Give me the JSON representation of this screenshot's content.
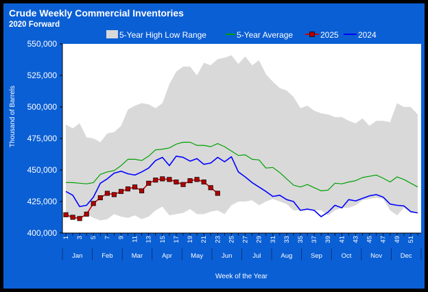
{
  "chart_data": {
    "type": "line",
    "title": "Crude Weekly Commercial Inventories",
    "subtitle": "2020 Forward",
    "xlabel": "Week of the Year",
    "ylabel": "Thousand of Barrels",
    "ylim": [
      400000,
      550000
    ],
    "yticks": [
      400000,
      425000,
      450000,
      475000,
      500000,
      525000,
      550000
    ],
    "ytick_labels": [
      "400,000",
      "425,000",
      "450,000",
      "475,000",
      "500,000",
      "525,000",
      "550,000"
    ],
    "xlim": [
      1,
      52
    ],
    "xticks": [
      1,
      3,
      5,
      7,
      9,
      11,
      13,
      15,
      17,
      19,
      21,
      23,
      25,
      27,
      29,
      31,
      33,
      35,
      37,
      39,
      41,
      43,
      45,
      47,
      49,
      51
    ],
    "xtick_labels": [
      "1",
      "3",
      "5",
      "7",
      "9",
      "11",
      "13",
      "15",
      "17",
      "19",
      "21",
      "23",
      "25",
      "27",
      "29",
      "31",
      "33",
      "35",
      "37",
      "39",
      "41",
      "43",
      "45",
      "47",
      "49",
      "51"
    ],
    "months": [
      "Jan",
      "Feb",
      "Mar",
      "Apr",
      "May",
      "Jun",
      "Jul",
      "Aug",
      "Sep",
      "Oct",
      "Nov",
      "Dec"
    ],
    "legend": {
      "position": "top",
      "entries": [
        "5-Year High Low Range",
        "5-Year Average",
        "2025",
        "2024"
      ]
    },
    "colors": {
      "background": "#0b5fd4",
      "plot_area": "#ffffff",
      "range": "#d9d9d9",
      "avg": "#00a000",
      "y2025": "#cc0000",
      "y2025_marker": "#b00000",
      "y2024": "#0000ff"
    },
    "series": [
      {
        "name": "5-Year High Low Range",
        "type": "range",
        "x": [
          1,
          2,
          3,
          4,
          5,
          6,
          7,
          8,
          9,
          10,
          11,
          12,
          13,
          14,
          15,
          16,
          17,
          18,
          19,
          20,
          21,
          22,
          23,
          24,
          25,
          26,
          27,
          28,
          29,
          30,
          31,
          32,
          33,
          34,
          35,
          36,
          37,
          38,
          39,
          40,
          41,
          42,
          43,
          44,
          45,
          46,
          47,
          48,
          49,
          50,
          51,
          52
        ],
        "high": [
          486000,
          483000,
          487000,
          476000,
          475000,
          472000,
          479000,
          480000,
          485000,
          498000,
          501000,
          503000,
          502000,
          499000,
          503000,
          518000,
          528000,
          532000,
          532000,
          525000,
          535000,
          533000,
          538000,
          539000,
          541000,
          534000,
          540000,
          533000,
          537000,
          526000,
          520000,
          515000,
          513000,
          508000,
          499000,
          501000,
          497000,
          495000,
          494000,
          492000,
          492000,
          489000,
          487000,
          491000,
          485000,
          489000,
          489000,
          488000,
          503000,
          500000,
          500000,
          494000
        ],
        "low": [
          413000,
          411000,
          412000,
          415000,
          412000,
          410000,
          411000,
          415000,
          413000,
          412000,
          414000,
          411000,
          413000,
          418000,
          421000,
          414000,
          415000,
          416000,
          419000,
          415000,
          415000,
          417000,
          418000,
          415000,
          422000,
          425000,
          425000,
          426000,
          422000,
          425000,
          427000,
          425000,
          423000,
          418000,
          418000,
          418000,
          418000,
          418000,
          414000,
          418000,
          420000,
          420000,
          422000,
          426000,
          427000,
          428000,
          427000,
          418000,
          414000,
          420000,
          416000,
          416000
        ]
      },
      {
        "name": "5-Year Average",
        "x": [
          1,
          2,
          3,
          4,
          5,
          6,
          7,
          8,
          9,
          10,
          11,
          12,
          13,
          14,
          15,
          16,
          17,
          18,
          19,
          20,
          21,
          22,
          23,
          24,
          25,
          26,
          27,
          28,
          29,
          30,
          31,
          32,
          33,
          34,
          35,
          36,
          37,
          38,
          39,
          40,
          41,
          42,
          43,
          44,
          45,
          46,
          47,
          48,
          49,
          50,
          51,
          52
        ],
        "values": [
          440000,
          440000,
          439500,
          439000,
          440000,
          446500,
          448500,
          449500,
          453500,
          458500,
          458500,
          457500,
          461000,
          466000,
          466500,
          467500,
          470500,
          472000,
          472000,
          469500,
          469500,
          468500,
          471000,
          468500,
          465000,
          461500,
          462000,
          458500,
          458000,
          451500,
          452000,
          448000,
          443000,
          438000,
          436500,
          438500,
          436000,
          433500,
          434000,
          439500,
          439000,
          440500,
          441500,
          444000,
          445000,
          446000,
          443500,
          440500,
          444500,
          442500,
          439500,
          436500
        ]
      },
      {
        "name": "2025",
        "x": [
          1,
          2,
          3,
          4,
          5,
          6,
          7,
          8,
          9,
          10,
          11,
          12,
          13,
          14,
          15,
          16,
          17,
          18,
          19,
          20,
          21,
          22,
          23
        ],
        "values": [
          414500,
          412500,
          411500,
          415000,
          423500,
          428000,
          431500,
          430500,
          433000,
          435000,
          436500,
          433500,
          439500,
          442000,
          443000,
          442500,
          440500,
          438500,
          441500,
          442500,
          440500,
          436000,
          431500
        ]
      },
      {
        "name": "2024",
        "x": [
          1,
          2,
          3,
          4,
          5,
          6,
          7,
          8,
          9,
          10,
          11,
          12,
          13,
          14,
          15,
          16,
          17,
          18,
          19,
          20,
          21,
          22,
          23,
          24,
          25,
          26,
          27,
          28,
          29,
          30,
          31,
          32,
          33,
          34,
          35,
          36,
          37,
          38,
          39,
          40,
          41,
          42,
          43,
          44,
          45,
          46,
          47,
          48,
          49,
          50,
          51,
          52
        ],
        "values": [
          433000,
          430000,
          421000,
          422000,
          428500,
          439500,
          443000,
          447500,
          449000,
          447000,
          446000,
          448500,
          451500,
          457500,
          460000,
          453500,
          461000,
          460000,
          457000,
          459000,
          454500,
          455500,
          460000,
          456500,
          460500,
          448500,
          444500,
          440000,
          436500,
          433000,
          429000,
          430000,
          426500,
          425000,
          418000,
          419000,
          418000,
          413000,
          416500,
          422000,
          420000,
          426500,
          425500,
          427500,
          429500,
          430500,
          428500,
          423000,
          422000,
          421500,
          417000,
          416000
        ]
      }
    ]
  }
}
